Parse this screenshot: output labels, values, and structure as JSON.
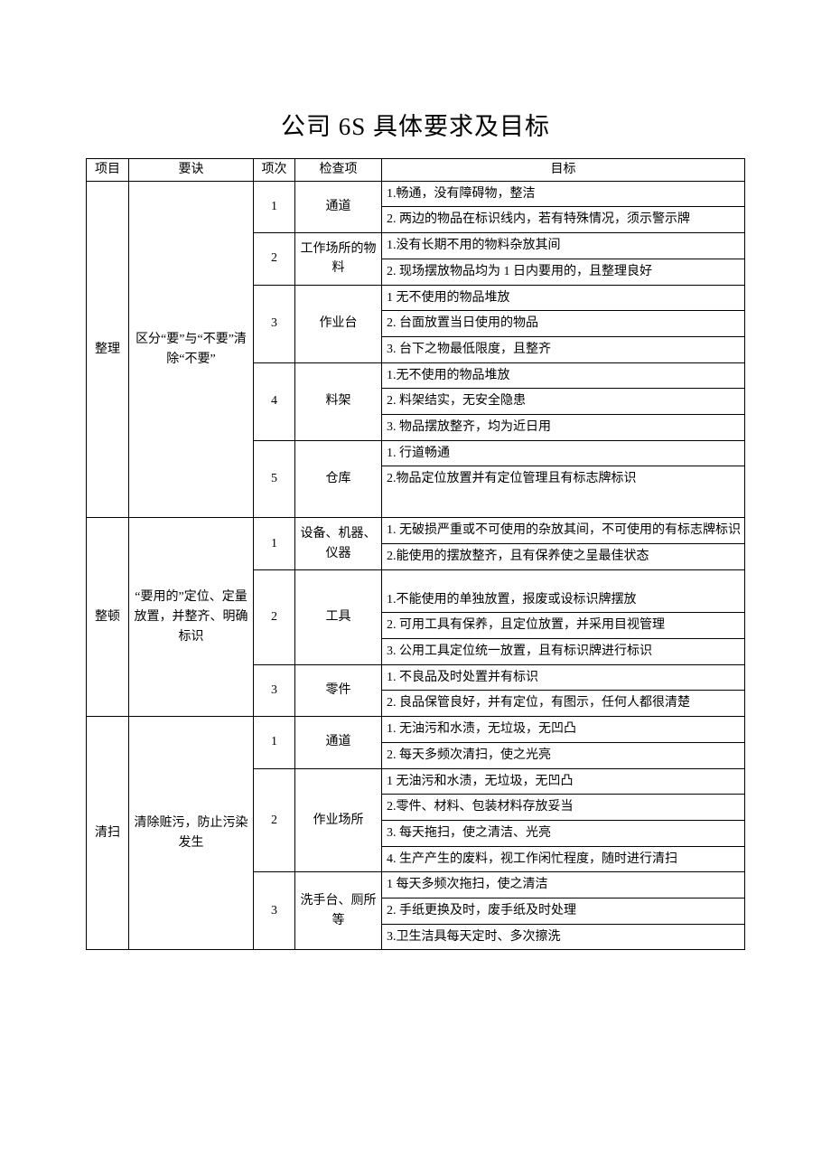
{
  "title": "公司 6S 具体要求及目标",
  "headers": {
    "project": "项目",
    "rule": "要诀",
    "no": "项次",
    "check": "检查项",
    "goal": "目标"
  },
  "sections": [
    {
      "project": "整理",
      "rule": "区分“要”与“不要”清除“不要”",
      "items": [
        {
          "no": "1",
          "check": "通道",
          "goals": [
            [
              "1.畅通，没有障碍物，整洁"
            ],
            [
              "2. 两边的物品在标识线内，若有特殊情况，须示警示牌"
            ]
          ]
        },
        {
          "no": "2",
          "check": "工作场所的物料",
          "goals": [
            [
              "1.没有长期不用的物料杂放其间"
            ],
            [
              "2. 现场摆放物品均为 1 日内要用的，且整理良好"
            ]
          ]
        },
        {
          "no": "3",
          "check": "作业台",
          "goals": [
            [
              "1 无不使用的物品堆放"
            ],
            [
              "2. 台面放置当日使用的物品"
            ],
            [
              "3. 台下之物最低限度，且整齐"
            ]
          ]
        },
        {
          "no": "4",
          "check": "料架",
          "goals": [
            [
              "1.无不使用的物品堆放"
            ],
            [
              "2. 料架结实，无安全隐患"
            ],
            [
              "3. 物品摆放整齐，均为近日用"
            ]
          ]
        },
        {
          "no": "5",
          "check": "仓库",
          "goals": [
            [
              "1. 行道畅通"
            ],
            [
              "2.物品定位放置并有定位管理且有标志牌标识"
            ]
          ],
          "tall": true
        }
      ]
    },
    {
      "project": "整顿",
      "rule": "“要用的”定位、定量放置，并整齐、明确标识",
      "items": [
        {
          "no": "1",
          "check": "设备、机器、仪器",
          "goals": [
            [
              "1. 无破损严重或不可使用的杂放其间，不可使用的有标志牌标识"
            ],
            [
              "2.能使用的摆放整齐，且有保养使之呈最佳状态"
            ]
          ]
        },
        {
          "no": "2",
          "check": "工具",
          "goals": [
            [
              "1.不能使用的单独放置，报废或设标识牌摆放"
            ],
            [
              "2. 可用工具有保养，且定位放置，并采用目视管理"
            ],
            [
              "3. 公用工具定位统一放置，且有标识牌进行标识"
            ]
          ],
          "padTop": true
        },
        {
          "no": "3",
          "check": "零件",
          "goals": [
            [
              "1. 不良品及时处置并有标识"
            ],
            [
              "2. 良品保管良好，并有定位，有图示，任何人都很清楚"
            ]
          ]
        }
      ]
    },
    {
      "project": "清扫",
      "rule": "清除赃污，防止污染发生",
      "items": [
        {
          "no": "1",
          "check": "通道",
          "goals": [
            [
              "1. 无油污和水渍，无垃圾，无凹凸"
            ],
            [
              "2. 每天多频次清扫，使之光亮"
            ]
          ]
        },
        {
          "no": "2",
          "check": "作业场所",
          "goals": [
            [
              "1 无油污和水渍，无垃圾，无凹凸"
            ],
            [
              "2.零件、材料、包装材料存放妥当"
            ],
            [
              "3. 每天拖扫，使之清洁、光亮"
            ],
            [
              "4. 生产产生的废料，视工作闲忙程度，随时进行清扫"
            ]
          ]
        },
        {
          "no": "3",
          "check": "洗手台、厕所等",
          "goals": [
            [
              "1 每天多频次拖扫，使之清洁"
            ],
            [
              "2. 手纸更换及时，废手纸及时处理"
            ],
            [
              "3.卫生洁具每天定时、多次擦洗"
            ]
          ]
        }
      ]
    }
  ]
}
